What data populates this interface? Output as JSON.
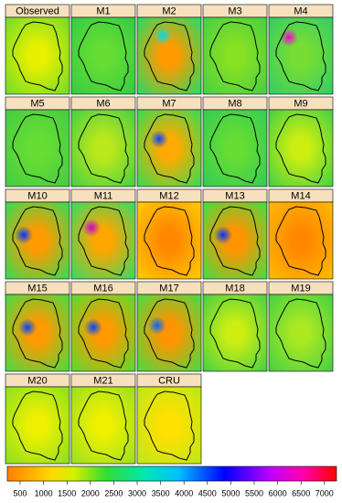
{
  "panels": [
    "Observed",
    "M1",
    "M2",
    "M3",
    "M4",
    "M5",
    "M6",
    "M7",
    "M8",
    "M9",
    "M10",
    "M11",
    "M12",
    "M13",
    "M14",
    "M15",
    "M16",
    "M17",
    "M18",
    "M19",
    "M20",
    "M21",
    "CRU"
  ],
  "colorbar": {
    "ticks": [
      500,
      1000,
      1500,
      2000,
      2500,
      3000,
      3500,
      4000,
      4500,
      5000,
      5500,
      6000,
      6500,
      7000
    ]
  }
}
